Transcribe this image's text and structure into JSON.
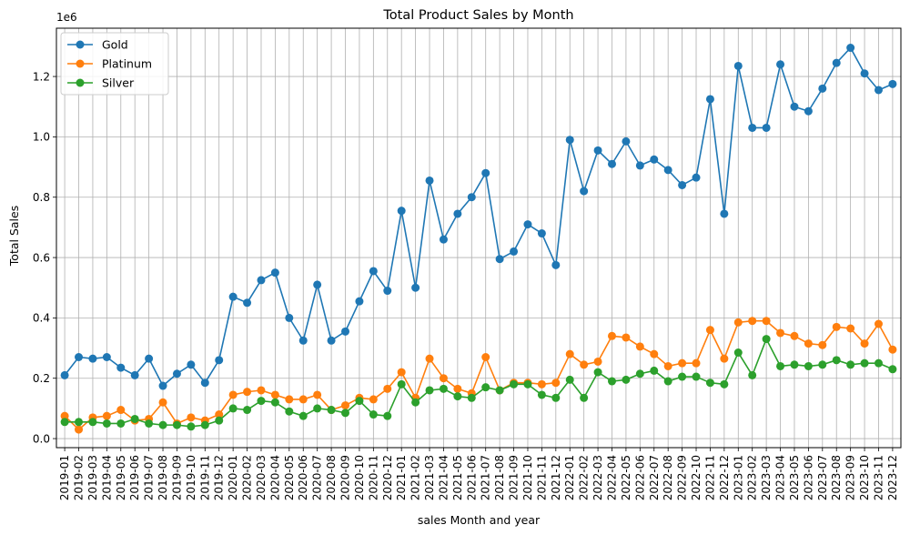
{
  "chart_data": {
    "type": "line",
    "title": "Total Product Sales by Month",
    "xlabel": "sales Month and year",
    "ylabel": "Total Sales",
    "y_offset_label": "1e6",
    "ylim": [
      -0.03,
      1.36
    ],
    "y_ticks": [
      0.0,
      0.2,
      0.4,
      0.6,
      0.8,
      1.0,
      1.2
    ],
    "y_tick_labels": [
      "0.0",
      "0.2",
      "0.4",
      "0.6",
      "0.8",
      "1.0",
      "1.2"
    ],
    "grid": true,
    "legend_position": "top-left",
    "categories": [
      "2019-01",
      "2019-02",
      "2019-03",
      "2019-04",
      "2019-05",
      "2019-06",
      "2019-07",
      "2019-08",
      "2019-09",
      "2019-10",
      "2019-11",
      "2019-12",
      "2020-01",
      "2020-02",
      "2020-03",
      "2020-04",
      "2020-05",
      "2020-06",
      "2020-07",
      "2020-08",
      "2020-09",
      "2020-10",
      "2020-11",
      "2020-12",
      "2021-01",
      "2021-02",
      "2021-03",
      "2021-04",
      "2021-05",
      "2021-06",
      "2021-07",
      "2021-08",
      "2021-09",
      "2021-10",
      "2021-11",
      "2021-12",
      "2022-01",
      "2022-02",
      "2022-03",
      "2022-04",
      "2022-05",
      "2022-06",
      "2022-07",
      "2022-08",
      "2022-09",
      "2022-10",
      "2022-11",
      "2022-12",
      "2023-01",
      "2023-02",
      "2023-03",
      "2023-04",
      "2023-05",
      "2023-06",
      "2023-07",
      "2023-08",
      "2023-09",
      "2023-10",
      "2023-11",
      "2023-12"
    ],
    "series": [
      {
        "name": "Gold",
        "color": "#1f77b4",
        "values": [
          0.21,
          0.27,
          0.265,
          0.27,
          0.235,
          0.21,
          0.265,
          0.175,
          0.215,
          0.245,
          0.185,
          0.26,
          0.47,
          0.45,
          0.525,
          0.55,
          0.4,
          0.325,
          0.51,
          0.325,
          0.355,
          0.455,
          0.555,
          0.49,
          0.755,
          0.5,
          0.855,
          0.66,
          0.745,
          0.8,
          0.88,
          0.595,
          0.62,
          0.71,
          0.68,
          0.575,
          0.99,
          0.82,
          0.955,
          0.91,
          0.985,
          0.905,
          0.925,
          0.89,
          0.84,
          0.865,
          1.125,
          0.745,
          1.235,
          1.03,
          1.03,
          1.24,
          1.1,
          1.085,
          1.16,
          1.245,
          1.295,
          1.21,
          1.155,
          1.175
        ]
      },
      {
        "name": "Platinum",
        "color": "#ff7f0e",
        "values": [
          0.075,
          0.03,
          0.07,
          0.075,
          0.095,
          0.06,
          0.065,
          0.12,
          0.05,
          0.07,
          0.06,
          0.08,
          0.145,
          0.155,
          0.16,
          0.145,
          0.13,
          0.13,
          0.145,
          0.095,
          0.11,
          0.135,
          0.13,
          0.165,
          0.22,
          0.135,
          0.265,
          0.2,
          0.165,
          0.15,
          0.27,
          0.16,
          0.185,
          0.185,
          0.18,
          0.185,
          0.28,
          0.245,
          0.255,
          0.34,
          0.335,
          0.305,
          0.28,
          0.24,
          0.25,
          0.25,
          0.36,
          0.265,
          0.385,
          0.39,
          0.39,
          0.35,
          0.34,
          0.315,
          0.31,
          0.37,
          0.365,
          0.315,
          0.38,
          0.295
        ]
      },
      {
        "name": "Silver",
        "color": "#2ca02c",
        "values": [
          0.055,
          0.055,
          0.055,
          0.05,
          0.05,
          0.065,
          0.05,
          0.045,
          0.045,
          0.04,
          0.045,
          0.06,
          0.1,
          0.095,
          0.125,
          0.12,
          0.09,
          0.075,
          0.1,
          0.095,
          0.085,
          0.125,
          0.08,
          0.075,
          0.18,
          0.12,
          0.16,
          0.165,
          0.14,
          0.135,
          0.17,
          0.16,
          0.18,
          0.18,
          0.145,
          0.135,
          0.195,
          0.135,
          0.22,
          0.19,
          0.195,
          0.215,
          0.225,
          0.19,
          0.205,
          0.205,
          0.185,
          0.18,
          0.285,
          0.21,
          0.33,
          0.24,
          0.245,
          0.24,
          0.245,
          0.26,
          0.245,
          0.25,
          0.25,
          0.23
        ]
      }
    ]
  }
}
